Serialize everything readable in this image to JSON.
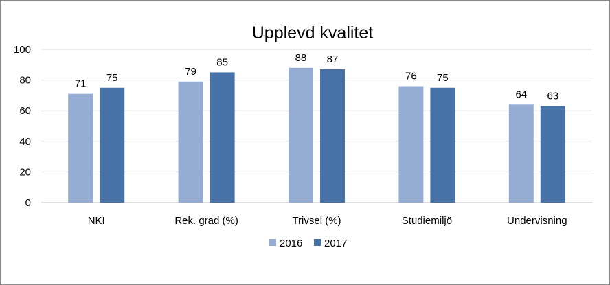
{
  "chart_data": {
    "type": "bar",
    "title": "Upplevd kvalitet",
    "categories": [
      "NKI",
      "Rek. grad (%)",
      "Trivsel (%)",
      "Studiemiljö",
      "Undervisning"
    ],
    "series": [
      {
        "name": "2016",
        "values": [
          71,
          79,
          88,
          76,
          64
        ],
        "color": "#95acd3"
      },
      {
        "name": "2017",
        "values": [
          75,
          85,
          87,
          75,
          63
        ],
        "color": "#4672a8"
      }
    ],
    "yticks": [
      "0",
      "20",
      "40",
      "60",
      "80",
      "100"
    ],
    "ylim": [
      0,
      100
    ],
    "grid": true,
    "legend_position": "bottom"
  }
}
